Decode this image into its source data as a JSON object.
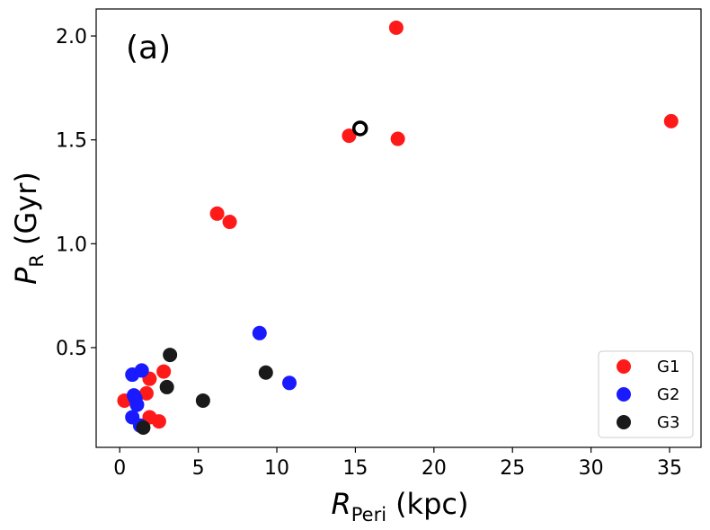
{
  "chart_data": {
    "type": "scatter",
    "panel_label": "(a)",
    "xlabel": {
      "main": "R",
      "sub": "Peri",
      "unit": "(kpc)"
    },
    "ylabel": {
      "main": "P",
      "sub": "R",
      "unit": "(Gyr)"
    },
    "xlim": [
      -1.5,
      37
    ],
    "ylim": [
      0.02,
      2.13
    ],
    "xticks": [
      0,
      5,
      10,
      15,
      20,
      25,
      30,
      35
    ],
    "xtick_labels": [
      "0",
      "5",
      "10",
      "15",
      "20",
      "25",
      "30",
      "35"
    ],
    "yticks": [
      0.5,
      1.0,
      1.5,
      2.0
    ],
    "ytick_labels": [
      "0.5",
      "1.0",
      "1.5",
      "2.0"
    ],
    "legend_position": "lower-right",
    "series": [
      {
        "name": "G1",
        "color": "#ff1a1a",
        "points": [
          [
            0.3,
            0.245
          ],
          [
            1.7,
            0.28
          ],
          [
            1.9,
            0.35
          ],
          [
            1.9,
            0.165
          ],
          [
            2.5,
            0.145
          ],
          [
            2.8,
            0.385
          ],
          [
            6.2,
            1.145
          ],
          [
            7.0,
            1.105
          ],
          [
            14.6,
            1.52
          ],
          [
            17.6,
            2.04
          ],
          [
            17.7,
            1.505
          ],
          [
            35.1,
            1.59
          ]
        ]
      },
      {
        "name": "G2",
        "color": "#1a1aff",
        "points": [
          [
            0.8,
            0.37
          ],
          [
            0.8,
            0.165
          ],
          [
            0.9,
            0.27
          ],
          [
            1.0,
            0.255
          ],
          [
            1.1,
            0.225
          ],
          [
            1.3,
            0.125
          ],
          [
            1.4,
            0.39
          ],
          [
            8.9,
            0.57
          ],
          [
            10.8,
            0.33
          ]
        ]
      },
      {
        "name": "G3",
        "color": "#1a1a1a",
        "points": [
          [
            1.5,
            0.115
          ],
          [
            3.0,
            0.31
          ],
          [
            3.2,
            0.465
          ],
          [
            5.3,
            0.245
          ],
          [
            9.3,
            0.38
          ]
        ]
      }
    ],
    "highlight_points": [
      {
        "x": 15.3,
        "y": 1.555,
        "style": "open-circle",
        "color": "#000000"
      }
    ]
  }
}
